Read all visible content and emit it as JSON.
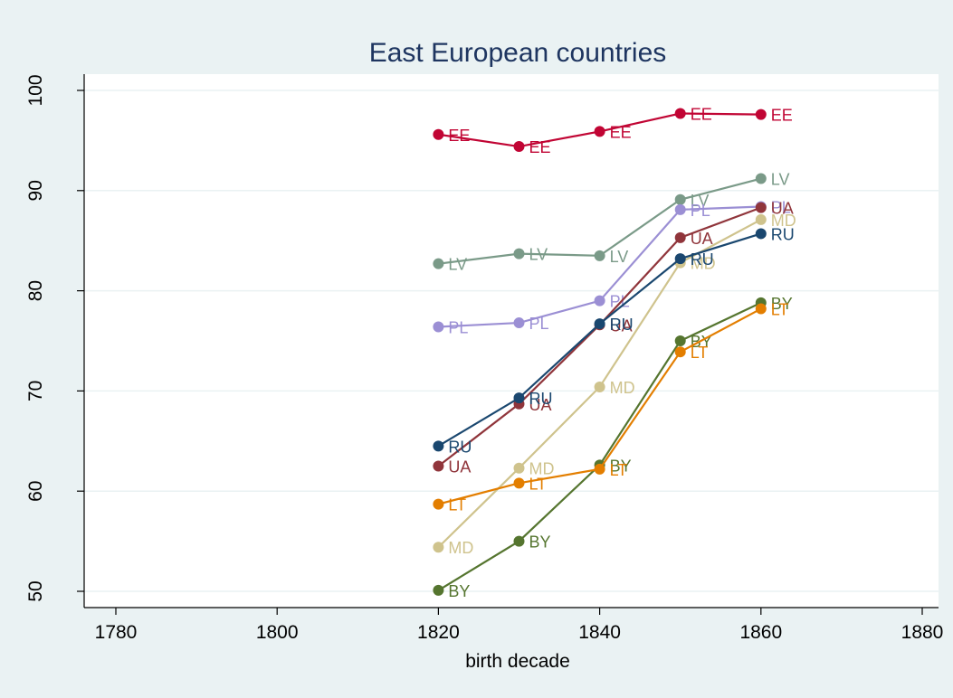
{
  "chart_data": {
    "type": "line",
    "title": "East European countries",
    "xlabel": "birth decade",
    "ylabel": "",
    "xlim": [
      1780,
      1880
    ],
    "ylim": [
      50,
      100
    ],
    "xticks": [
      1780,
      1800,
      1820,
      1840,
      1860,
      1880
    ],
    "yticks": [
      50,
      60,
      70,
      80,
      90,
      100
    ],
    "grid": true,
    "legend": "none",
    "x": [
      1820,
      1830,
      1840,
      1850,
      1860
    ],
    "series": [
      {
        "name": "EE",
        "color": "#c10534",
        "values": [
          95.6,
          94.4,
          95.9,
          97.7,
          97.6
        ]
      },
      {
        "name": "LV",
        "color": "#7a9a88",
        "values": [
          82.7,
          83.7,
          83.5,
          89.1,
          91.2
        ]
      },
      {
        "name": "PL",
        "color": "#9b8fd4",
        "values": [
          76.4,
          76.8,
          79.0,
          88.1,
          88.4
        ]
      },
      {
        "name": "UA",
        "color": "#90353b",
        "values": [
          62.5,
          68.7,
          76.6,
          85.3,
          88.3
        ]
      },
      {
        "name": "MD",
        "color": "#cfc38d",
        "values": [
          54.4,
          62.3,
          70.4,
          82.8,
          87.1
        ]
      },
      {
        "name": "RU",
        "color": "#1a476f",
        "values": [
          64.5,
          69.3,
          76.7,
          83.2,
          85.7
        ]
      },
      {
        "name": "BY",
        "color": "#55752f",
        "values": [
          50.1,
          55.0,
          62.6,
          75.0,
          78.8
        ]
      },
      {
        "name": "LT",
        "color": "#e37e00",
        "values": [
          58.7,
          60.8,
          62.2,
          73.9,
          78.2
        ]
      }
    ]
  }
}
